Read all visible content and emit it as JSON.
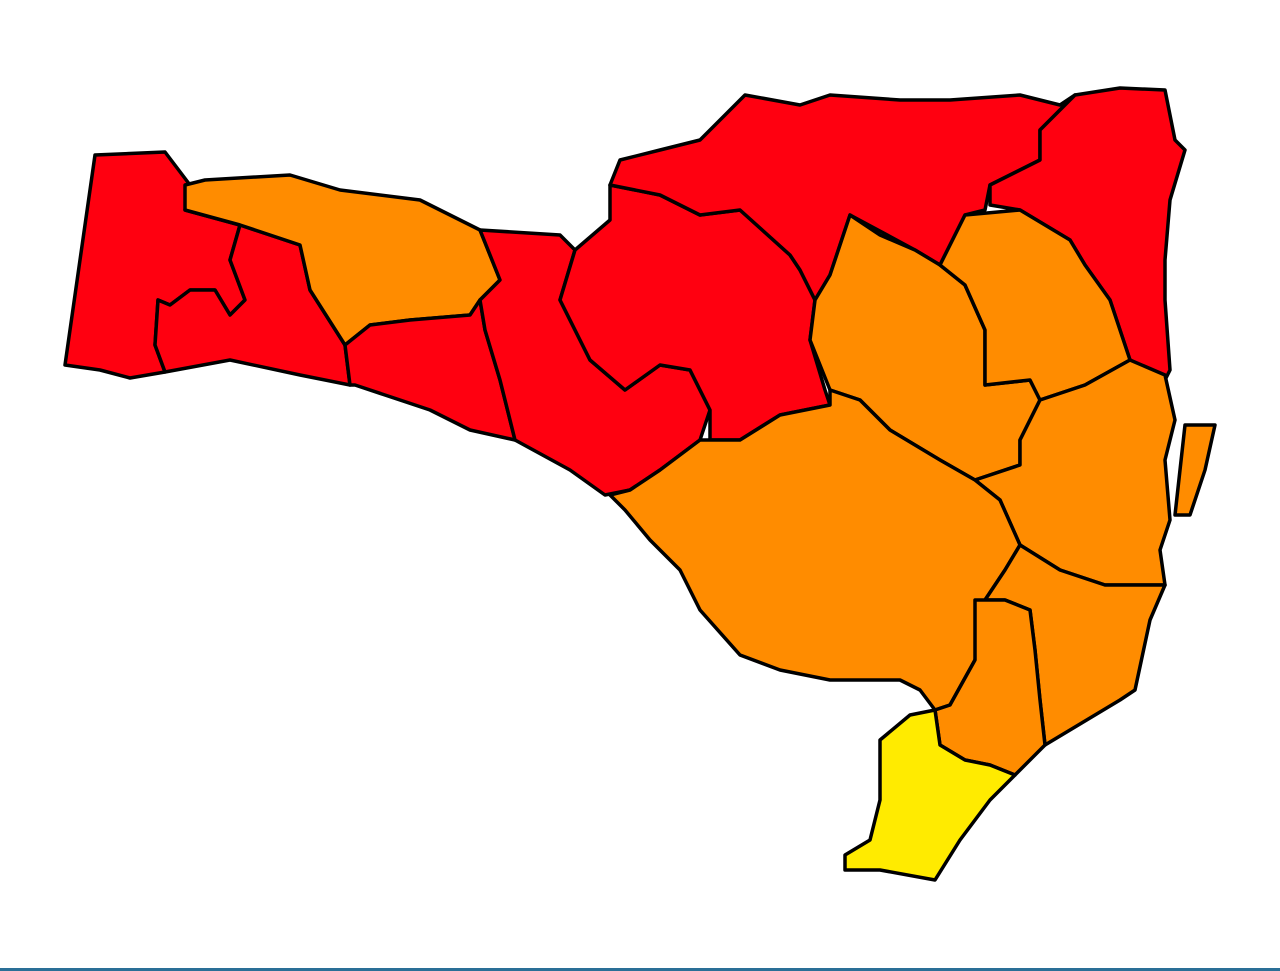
{
  "map": {
    "colors": {
      "red": "#ff0010",
      "orange": "#ff8c00",
      "yellow": "#ffeb00",
      "border": "#000000",
      "background": "#ffffff",
      "bottom_bar": "#2a6f97"
    },
    "regions": [
      {
        "id": "r1",
        "level": "red"
      },
      {
        "id": "r2",
        "level": "red"
      },
      {
        "id": "o1",
        "level": "orange"
      },
      {
        "id": "r3",
        "level": "red"
      },
      {
        "id": "r4",
        "level": "red"
      },
      {
        "id": "r5",
        "level": "red"
      },
      {
        "id": "r6",
        "level": "red"
      },
      {
        "id": "r7",
        "level": "red"
      },
      {
        "id": "o2",
        "level": "orange"
      },
      {
        "id": "o3",
        "level": "orange"
      },
      {
        "id": "o4",
        "level": "orange"
      },
      {
        "id": "o-island",
        "level": "orange"
      },
      {
        "id": "o5",
        "level": "orange"
      },
      {
        "id": "o6",
        "level": "orange"
      },
      {
        "id": "o7",
        "level": "orange"
      },
      {
        "id": "y1",
        "level": "yellow"
      }
    ]
  }
}
